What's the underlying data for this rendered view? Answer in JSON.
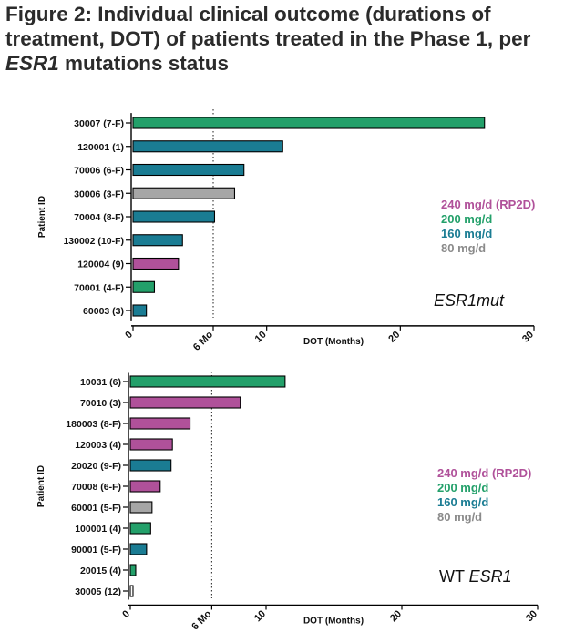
{
  "figure": {
    "title_part1": "Figure 2: Individual clinical outcome (durations of treatment, DOT) of patients treated in the Phase 1, per ",
    "title_italic": "ESR1",
    "title_part2": " mutations status"
  },
  "colors": {
    "240 mg/d (RP2D)": "#b0519a",
    "200 mg/d": "#23a06a",
    "160 mg/d": "#1a7c93",
    "80 mg/d": "#a6a6a6"
  },
  "chart_data": [
    {
      "type": "bar",
      "orientation": "horizontal",
      "panel_label": "ESR1mut",
      "ylabel": "Patient ID",
      "xlabel": "DOT (Months)",
      "xlim": [
        0,
        30
      ],
      "xticks": [
        "0",
        "6 Mo",
        "10",
        "20",
        "30"
      ],
      "xtick_values": [
        0,
        6,
        10,
        20,
        30
      ],
      "reference_line": {
        "x": 6,
        "label": "6 Mo",
        "style": "dotted"
      },
      "legend": {
        "placement": "right",
        "entries": [
          {
            "label": "240 mg/d (RP2D)",
            "color": "#b0519a"
          },
          {
            "label": "200 mg/d",
            "color": "#23a06a"
          },
          {
            "label": "160 mg/d",
            "color": "#1a7c93"
          },
          {
            "label": "80 mg/d",
            "color": "#8a8a8a"
          }
        ]
      },
      "categories": [
        "30007 (7-F)",
        "120001 (1)",
        "70006 (6-F)",
        "30006 (3-F)",
        "70004 (8-F)",
        "130002 (10-F)",
        "120004 (9)",
        "70001 (4-F)",
        "60003 (3)"
      ],
      "values": [
        26.3,
        11.2,
        8.3,
        7.6,
        6.1,
        3.7,
        3.4,
        1.6,
        1.0
      ],
      "dose": [
        "200 mg/d",
        "160 mg/d",
        "160 mg/d",
        "80 mg/d",
        "160 mg/d",
        "160 mg/d",
        "240 mg/d (RP2D)",
        "200 mg/d",
        "160 mg/d"
      ]
    },
    {
      "type": "bar",
      "orientation": "horizontal",
      "panel_label_prefix": "WT ",
      "panel_label_italic": "ESR1",
      "ylabel": "Patient ID",
      "xlabel": "DOT (Months)",
      "xlim": [
        0,
        30
      ],
      "xticks": [
        "0",
        "6 Mo",
        "10",
        "20",
        "30"
      ],
      "xtick_values": [
        0,
        6,
        10,
        20,
        30
      ],
      "reference_line": {
        "x": 6,
        "label": "6 Mo",
        "style": "dotted"
      },
      "legend": {
        "placement": "right",
        "entries": [
          {
            "label": "240 mg/d (RP2D)",
            "color": "#b0519a"
          },
          {
            "label": "200 mg/d",
            "color": "#23a06a"
          },
          {
            "label": "160 mg/d",
            "color": "#1a7c93"
          },
          {
            "label": "80 mg/d",
            "color": "#8a8a8a"
          }
        ]
      },
      "categories": [
        "10031 (6)",
        "70010 (3)",
        "180003 (8-F)",
        "120003 (4)",
        "20020 (9-F)",
        "70008 (6-F)",
        "60001 (5-F)",
        "100001 (4)",
        "90001 (5-F)",
        "20015 (4)",
        "30005 (12)"
      ],
      "values": [
        11.4,
        8.1,
        4.4,
        3.1,
        3.0,
        2.2,
        1.6,
        1.5,
        1.2,
        0.4,
        0.2
      ],
      "dose": [
        "200 mg/d",
        "240 mg/d (RP2D)",
        "240 mg/d (RP2D)",
        "240 mg/d (RP2D)",
        "160 mg/d",
        "240 mg/d (RP2D)",
        "80 mg/d",
        "200 mg/d",
        "160 mg/d",
        "200 mg/d",
        "none"
      ]
    }
  ]
}
